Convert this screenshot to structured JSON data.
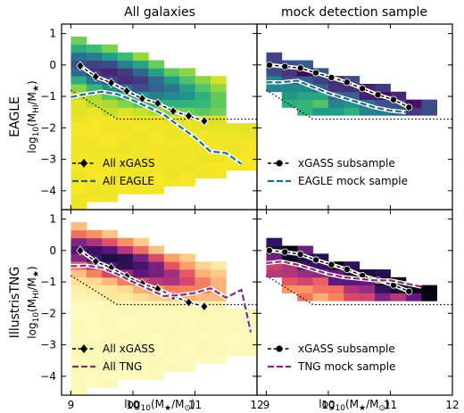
{
  "figure": {
    "col_titles": [
      "All galaxies",
      "mock detection sample"
    ],
    "row_titles": [
      "EAGLE",
      "IllustrisTNG"
    ],
    "ylabel_main": "log",
    "ylabel_sub": "10",
    "ylabel_arg": "(M",
    "ylabel_arg_sub": "HI",
    "ylabel_arg_mid": "/M",
    "ylabel_arg_sub2": "★",
    "ylabel_arg_end": ")",
    "xlabel_main": "log",
    "xlabel_sub": "10",
    "xlabel_arg": "(M",
    "xlabel_arg_sub": "★",
    "xlabel_arg_mid": "/M",
    "xlabel_arg_sub2": "⊙",
    "xlabel_arg_end": ")"
  },
  "chart_data": [
    {
      "type": "heatmap",
      "panel": "EAGLE, All galaxies",
      "colormap": "viridis-reversed",
      "xlim": [
        8.85,
        12.0
      ],
      "ylim": [
        -4.6,
        1.3
      ],
      "xticks": [
        "9",
        "10",
        "11",
        "12"
      ],
      "yticks": [
        "1",
        "0",
        "−1",
        "−2",
        "−3",
        "−4"
      ],
      "show_xticklabels": false,
      "show_yticklabels": true,
      "detection_limit": [
        [
          9.0,
          -0.8
        ],
        [
          9.75,
          -1.72
        ],
        [
          12.0,
          -1.72
        ]
      ],
      "series": [
        {
          "name": "All xGASS",
          "marker": "diamond",
          "color": "#000000",
          "x": [
            9.15,
            9.4,
            9.65,
            9.9,
            10.15,
            10.4,
            10.65,
            10.9,
            11.15
          ],
          "y": [
            -0.03,
            -0.37,
            -0.57,
            -0.83,
            -1.07,
            -1.22,
            -1.47,
            -1.62,
            -1.78
          ]
        },
        {
          "name": "All EAGLE",
          "marker": "none",
          "color": "#1f6f8b",
          "x": [
            9.0,
            9.25,
            9.5,
            9.75,
            10.0,
            10.25,
            10.5,
            10.75,
            11.0,
            11.25,
            11.5,
            11.75
          ],
          "y": [
            -1.02,
            -0.92,
            -0.85,
            -0.93,
            -1.12,
            -1.35,
            -1.58,
            -1.95,
            -2.3,
            -2.75,
            -2.8,
            -3.15
          ]
        }
      ]
    },
    {
      "type": "heatmap",
      "panel": "EAGLE, mock detection sample",
      "colormap": "viridis-reversed",
      "xlim": [
        8.85,
        12.0
      ],
      "ylim": [
        -4.6,
        1.3
      ],
      "xticks": [
        "9",
        "10",
        "11",
        "12"
      ],
      "show_xticklabels": false,
      "show_yticklabels": false,
      "detection_limit": [
        [
          9.0,
          -0.8
        ],
        [
          9.75,
          -1.72
        ],
        [
          12.0,
          -1.72
        ]
      ],
      "series": [
        {
          "name": "xGASS subsample",
          "marker": "circle",
          "color": "#000000",
          "x": [
            9.05,
            9.3,
            9.55,
            9.8,
            10.05,
            10.3,
            10.55,
            10.8,
            11.05,
            11.3
          ],
          "y": [
            0.0,
            -0.05,
            -0.1,
            -0.25,
            -0.4,
            -0.55,
            -0.75,
            -0.95,
            -1.1,
            -1.35
          ]
        },
        {
          "name": "EAGLE mock sample",
          "marker": "none",
          "color": "#1f6f8b",
          "x": [
            9.0,
            9.25,
            9.5,
            9.75,
            10.0,
            10.25,
            10.5,
            10.75,
            11.0,
            11.25
          ],
          "y": [
            -0.55,
            -0.55,
            -0.5,
            -0.7,
            -0.9,
            -1.05,
            -1.2,
            -1.35,
            -1.45,
            -1.5
          ]
        }
      ]
    },
    {
      "type": "heatmap",
      "panel": "IllustrisTNG, All galaxies",
      "colormap": "magma-reversed",
      "xlim": [
        8.85,
        12.0
      ],
      "ylim": [
        -4.6,
        1.3
      ],
      "xticks": [
        "9",
        "10",
        "11",
        "12"
      ],
      "yticks": [
        "1",
        "0",
        "−1",
        "−2",
        "−3",
        "−4"
      ],
      "show_xticklabels": true,
      "show_yticklabels": true,
      "detection_limit": [
        [
          9.0,
          -0.8
        ],
        [
          9.75,
          -1.72
        ],
        [
          12.0,
          -1.72
        ]
      ],
      "series": [
        {
          "name": "All xGASS",
          "marker": "diamond",
          "color": "#000000",
          "x": [
            9.15,
            9.4,
            9.65,
            9.9,
            10.15,
            10.4,
            10.65,
            10.9,
            11.15
          ],
          "y": [
            0.0,
            -0.35,
            -0.55,
            -0.82,
            -1.05,
            -1.22,
            -1.45,
            -1.65,
            -1.78
          ]
        },
        {
          "name": "All TNG",
          "marker": "none",
          "color": "#8b2c6e",
          "x": [
            9.0,
            9.25,
            9.5,
            9.75,
            10.0,
            10.25,
            10.5,
            10.75,
            11.0,
            11.25,
            11.5,
            11.75,
            11.9
          ],
          "y": [
            -0.5,
            -0.48,
            -0.55,
            -0.75,
            -1.0,
            -1.22,
            -1.45,
            -1.42,
            -1.35,
            -1.2,
            -1.5,
            -1.25,
            -2.6
          ]
        }
      ]
    },
    {
      "type": "heatmap",
      "panel": "IllustrisTNG, mock detection sample",
      "colormap": "magma-reversed",
      "xlim": [
        8.85,
        12.0
      ],
      "ylim": [
        -4.6,
        1.3
      ],
      "xticks": [
        "9",
        "10",
        "11",
        "12"
      ],
      "show_xticklabels": true,
      "show_yticklabels": false,
      "detection_limit": [
        [
          9.0,
          -0.8
        ],
        [
          9.75,
          -1.72
        ],
        [
          12.0,
          -1.72
        ]
      ],
      "series": [
        {
          "name": "xGASS subsample",
          "marker": "circle",
          "color": "#000000",
          "x": [
            9.05,
            9.3,
            9.55,
            9.8,
            10.05,
            10.3,
            10.55,
            10.8,
            11.05,
            11.3
          ],
          "y": [
            0.0,
            -0.05,
            -0.12,
            -0.3,
            -0.45,
            -0.6,
            -0.8,
            -0.95,
            -1.1,
            -1.3
          ]
        },
        {
          "name": "TNG mock sample",
          "marker": "none",
          "color": "#8b2c6e",
          "x": [
            9.0,
            9.25,
            9.5,
            9.75,
            10.0,
            10.25,
            10.5,
            10.75,
            11.0,
            11.25,
            11.5
          ],
          "y": [
            -0.4,
            -0.35,
            -0.45,
            -0.6,
            -0.75,
            -0.85,
            -0.9,
            -0.95,
            -0.95,
            -1.05,
            -1.15
          ]
        }
      ]
    }
  ]
}
